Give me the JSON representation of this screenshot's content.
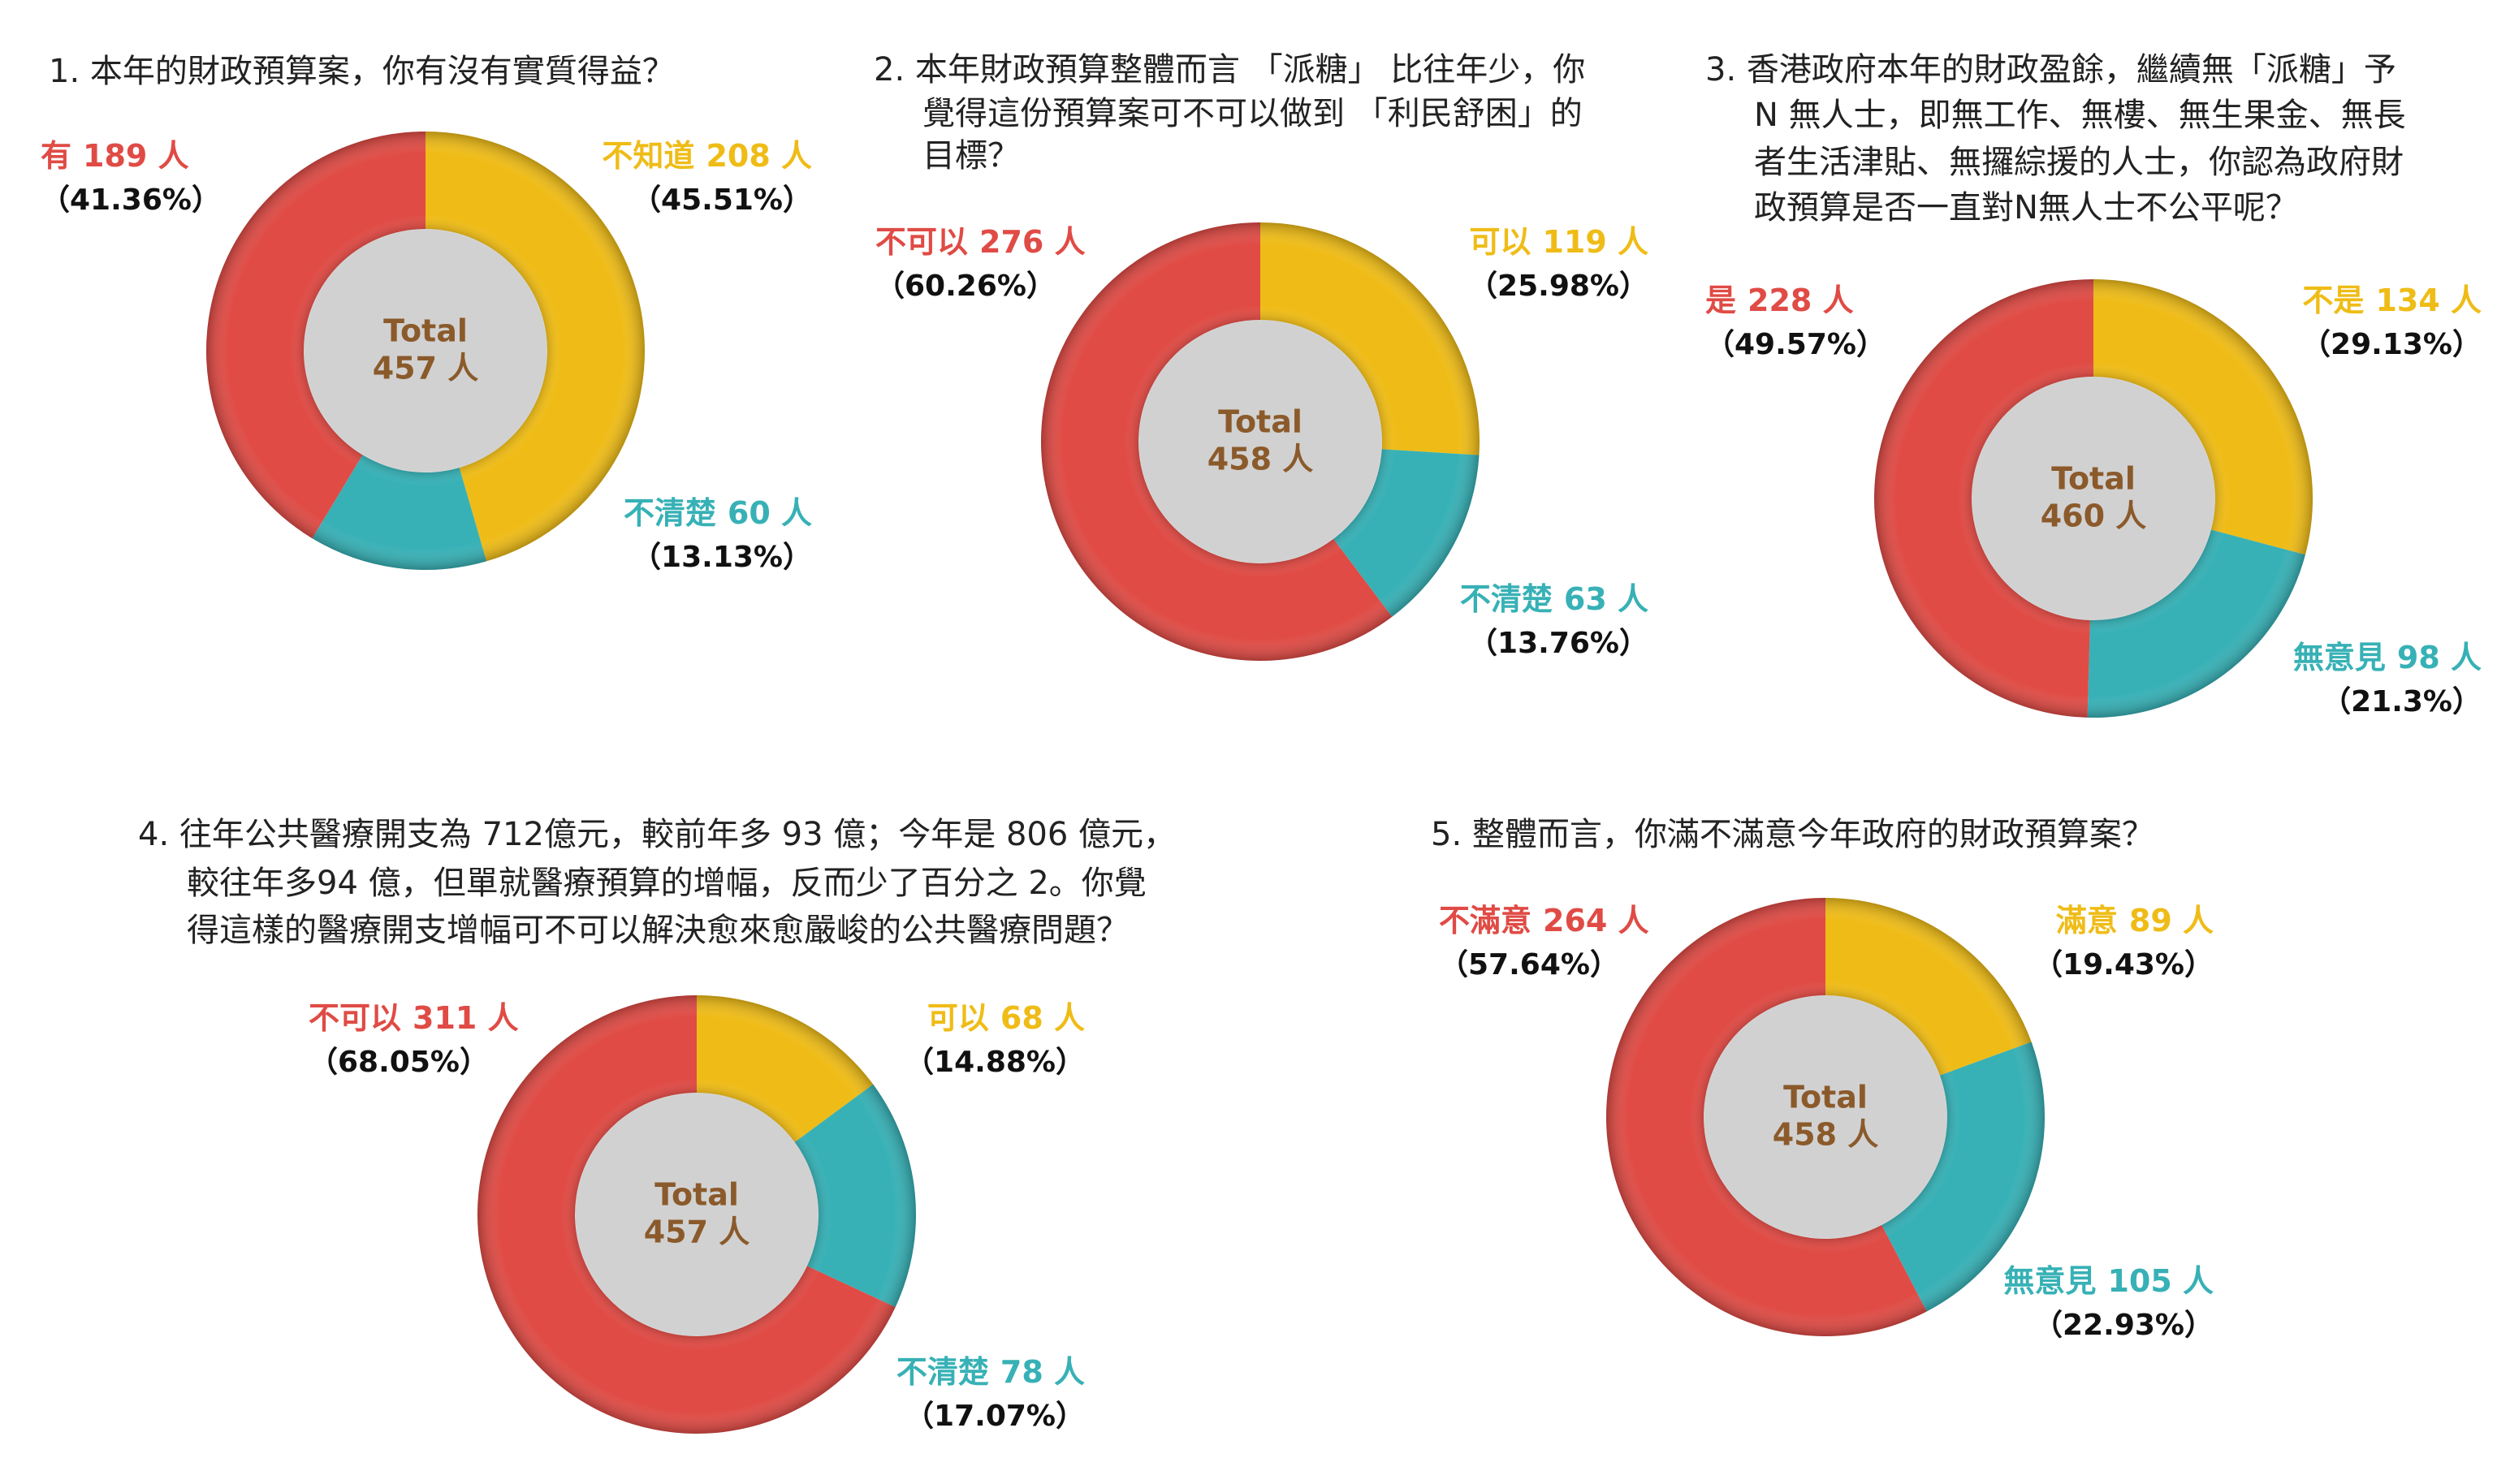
{
  "chart_data": [
    {
      "type": "pie",
      "title_lines": [
        "1.  本年的財政預算案，你有沒有實質得益？"
      ],
      "categories": [
        "不知道",
        "不清楚",
        "有"
      ],
      "values": [
        208,
        60,
        189
      ],
      "value_labels": [
        "208 人",
        "60 人",
        "189 人"
      ],
      "percentages": [
        45.51,
        13.13,
        41.36
      ],
      "percentage_labels": [
        "（45.51%）",
        "（13.13%）",
        "（41.36%）"
      ],
      "colors": [
        "#efbc17",
        "#37b1b6",
        "#e04b45"
      ],
      "center_text": [
        "Total",
        "457 人"
      ]
    },
    {
      "type": "pie",
      "title_lines": [
        "2.  本年財政預算整體而言 「派糖」 比往年少，你",
        "覺得這份預算案可不可以做到 「利民舒困」的",
        "目標？"
      ],
      "categories": [
        "可以",
        "不清楚",
        "不可以"
      ],
      "values": [
        119,
        63,
        276
      ],
      "value_labels": [
        "119 人",
        "63 人",
        "276 人"
      ],
      "percentages": [
        25.98,
        13.76,
        60.26
      ],
      "percentage_labels": [
        "（25.98%）",
        "（13.76%）",
        "（60.26%）"
      ],
      "colors": [
        "#efbc17",
        "#37b1b6",
        "#e04b45"
      ],
      "center_text": [
        "Total",
        "458 人"
      ]
    },
    {
      "type": "pie",
      "title_lines": [
        "3.  香港政府本年的財政盈餘，繼續無「派糖」予",
        "N 無人士，即無工作、無樓、無生果金、無長",
        "者生活津貼、無攞綜援的人士，你認為政府財",
        "政預算是否一直對N無人士不公平呢？"
      ],
      "categories": [
        "不是",
        "無意見",
        "是"
      ],
      "values": [
        134,
        98,
        228
      ],
      "value_labels": [
        "134 人",
        "98 人",
        "228 人"
      ],
      "percentages": [
        29.13,
        21.3,
        49.57
      ],
      "percentage_labels": [
        "（29.13%）",
        "（21.3%）",
        "（49.57%）"
      ],
      "colors": [
        "#efbc17",
        "#37b1b6",
        "#e04b45"
      ],
      "center_text": [
        "Total",
        "460 人"
      ]
    },
    {
      "type": "pie",
      "title_lines": [
        "4.  往年公共醫療開支為 712億元，較前年多 93 億；今年是 806 億元，",
        "較往年多94 億，但單就醫療預算的增幅，反而少了百分之 2。你覺",
        "得這樣的醫療開支增幅可不可以解決愈來愈嚴峻的公共醫療問題？"
      ],
      "categories": [
        "可以",
        "不清楚",
        "不可以"
      ],
      "values": [
        68,
        78,
        311
      ],
      "value_labels": [
        "68 人",
        "78 人",
        "311 人"
      ],
      "percentages": [
        14.88,
        17.07,
        68.05
      ],
      "percentage_labels": [
        "（14.88%）",
        "（17.07%）",
        "（68.05%）"
      ],
      "colors": [
        "#efbc17",
        "#37b1b6",
        "#e04b45"
      ],
      "center_text": [
        "Total",
        "457 人"
      ]
    },
    {
      "type": "pie",
      "title_lines": [
        "5.  整體而言，你滿不滿意今年政府的財政預算案？"
      ],
      "categories": [
        "滿意",
        "無意見",
        "不滿意"
      ],
      "values": [
        89,
        105,
        264
      ],
      "value_labels": [
        "89 人",
        "105 人",
        "264 人"
      ],
      "percentages": [
        19.43,
        22.93,
        57.64
      ],
      "percentage_labels": [
        "（19.43%）",
        "（22.93%）",
        "（57.64%）"
      ],
      "colors": [
        "#efbc17",
        "#37b1b6",
        "#e04b45"
      ],
      "center_text": [
        "Total",
        "458 人"
      ]
    }
  ]
}
